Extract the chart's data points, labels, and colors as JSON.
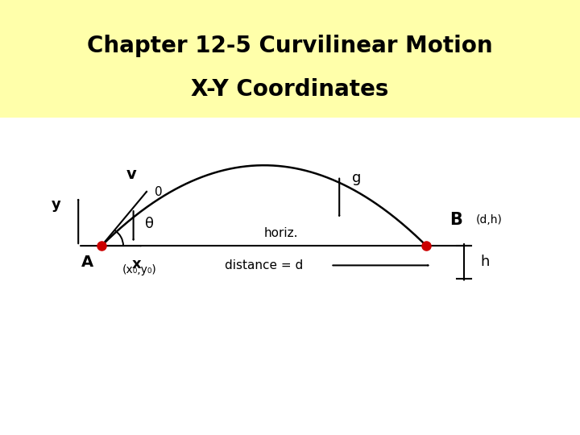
{
  "title_line1": "Chapter 12-5 Curvilinear Motion",
  "title_line2": "X-Y Coordinates",
  "title_bg_color": "#ffffaa",
  "bg_color": "#ffffff",
  "title_fontsize": 20,
  "red_dot_color": "#cc0000",
  "point_A": [
    0.175,
    0.435
  ],
  "point_B": [
    0.735,
    0.435
  ],
  "v_label": "v",
  "g_label": "g",
  "B_label": "B",
  "A_label": "A",
  "theta_label": "θ",
  "horiz_label": "horiz.",
  "dist_label": "distance = d",
  "h_label": "h",
  "x0y0_label": "(x₀,y₀)",
  "dh_label": "(d,h)",
  "x_label": "x",
  "y_label": "y",
  "zero_label": "0"
}
